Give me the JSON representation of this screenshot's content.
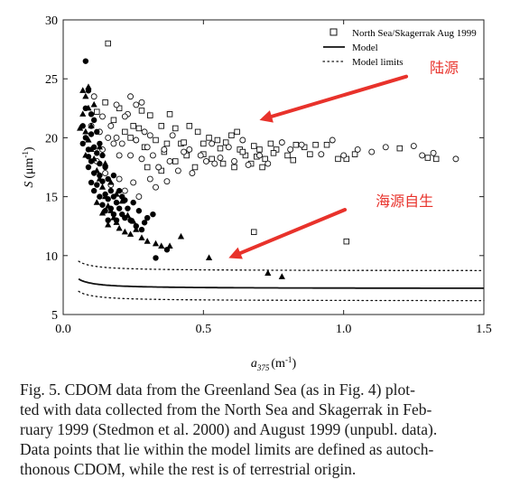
{
  "chart_data": {
    "type": "scatter",
    "title": "",
    "xlabel": "a",
    "xlabel_sub": "375",
    "xlabel_unit": "(m",
    "xlabel_unit_sup": "-1",
    "xlabel_unit_close": ")",
    "ylabel": "S",
    "ylabel_unit": "(μm",
    "ylabel_unit_sup": "-1",
    "ylabel_unit_close": ")",
    "xlim": [
      0.0,
      1.5
    ],
    "ylim": [
      5,
      30
    ],
    "x_ticks": [
      "0.0",
      "0.5",
      "1.0",
      "1.5"
    ],
    "y_ticks": [
      "5",
      "10",
      "15",
      "20",
      "25",
      "30"
    ],
    "grid": false,
    "legend_position": "top-right",
    "legend": [
      {
        "label": "North Sea/Skagerrak Aug 1999",
        "kind": "open-square"
      },
      {
        "label": "Model",
        "kind": "solid-line"
      },
      {
        "label": "Model limits",
        "kind": "dotted-line"
      }
    ],
    "model": {
      "a": 0.045,
      "n": 1.0,
      "c": 7.2,
      "upper_offset": 1.5,
      "lower_offset": -1.05,
      "x_start": 0.055
    },
    "annotations": [
      {
        "text": "陆源",
        "x": 1.41,
        "y": 25.5,
        "color": "#e8322b",
        "arrow_to": [
          0.7,
          21.5
        ]
      },
      {
        "text": "海源自生",
        "x": 1.32,
        "y": 14.2,
        "color": "#e8322b",
        "arrow_to": [
          0.59,
          9.8
        ]
      }
    ],
    "series": [
      {
        "kind": "open-square",
        "points": [
          [
            0.16,
            28
          ],
          [
            0.12,
            22.2
          ],
          [
            0.15,
            23
          ],
          [
            0.2,
            22.5
          ],
          [
            0.25,
            21
          ],
          [
            0.28,
            22.3
          ],
          [
            0.31,
            21.9
          ],
          [
            0.35,
            21
          ],
          [
            0.38,
            22
          ],
          [
            0.4,
            20.8
          ],
          [
            0.42,
            19.5
          ],
          [
            0.45,
            21
          ],
          [
            0.48,
            20.5
          ],
          [
            0.5,
            19.5
          ],
          [
            0.52,
            20
          ],
          [
            0.55,
            19.8
          ],
          [
            0.58,
            19.6
          ],
          [
            0.6,
            20.2
          ],
          [
            0.62,
            20.5
          ],
          [
            0.63,
            19
          ],
          [
            0.65,
            18.5
          ],
          [
            0.68,
            19.3
          ],
          [
            0.7,
            19
          ],
          [
            0.72,
            18.2
          ],
          [
            0.74,
            19.5
          ],
          [
            0.76,
            19
          ],
          [
            0.8,
            18.5
          ],
          [
            0.83,
            19.4
          ],
          [
            0.86,
            19.2
          ],
          [
            0.9,
            19.4
          ],
          [
            0.94,
            19.4
          ],
          [
            0.98,
            18.2
          ],
          [
            1.01,
            18.2
          ],
          [
            1.04,
            18.6
          ],
          [
            1.2,
            19.1
          ],
          [
            1.3,
            18.3
          ],
          [
            1.33,
            18.2
          ],
          [
            0.18,
            21.5
          ],
          [
            0.22,
            20.5
          ],
          [
            0.27,
            20.8
          ],
          [
            0.33,
            19.8
          ],
          [
            0.37,
            19.5
          ],
          [
            0.44,
            18.5
          ],
          [
            0.47,
            17.5
          ],
          [
            0.53,
            18.2
          ],
          [
            0.57,
            17.8
          ],
          [
            0.61,
            17.5
          ],
          [
            0.67,
            17.8
          ],
          [
            0.71,
            17.5
          ],
          [
            0.3,
            17.5
          ],
          [
            0.35,
            17.2
          ],
          [
            0.4,
            18
          ],
          [
            0.68,
            12
          ],
          [
            1.01,
            11.2
          ],
          [
            0.24,
            20
          ],
          [
            0.29,
            19.2
          ],
          [
            0.36,
            18.8
          ],
          [
            0.43,
            19.6
          ],
          [
            0.5,
            18.6
          ],
          [
            0.56,
            19.1
          ],
          [
            0.64,
            18.8
          ],
          [
            0.69,
            18.4
          ],
          [
            0.75,
            18.7
          ],
          [
            0.82,
            18.1
          ],
          [
            0.88,
            18.6
          ]
        ]
      },
      {
        "kind": "open-circle",
        "points": [
          [
            0.1,
            21
          ],
          [
            0.11,
            23.5
          ],
          [
            0.13,
            20.5
          ],
          [
            0.14,
            19
          ],
          [
            0.17,
            21
          ],
          [
            0.19,
            20
          ],
          [
            0.21,
            19.5
          ],
          [
            0.23,
            22
          ],
          [
            0.24,
            18.5
          ],
          [
            0.26,
            19.8
          ],
          [
            0.28,
            18.2
          ],
          [
            0.29,
            20.5
          ],
          [
            0.3,
            19.2
          ],
          [
            0.32,
            18.5
          ],
          [
            0.34,
            17.5
          ],
          [
            0.36,
            19
          ],
          [
            0.38,
            18
          ],
          [
            0.39,
            20.2
          ],
          [
            0.41,
            17.2
          ],
          [
            0.43,
            18.8
          ],
          [
            0.45,
            19
          ],
          [
            0.46,
            17
          ],
          [
            0.49,
            18.5
          ],
          [
            0.51,
            18
          ],
          [
            0.53,
            19.5
          ],
          [
            0.54,
            17.8
          ],
          [
            0.56,
            18.3
          ],
          [
            0.59,
            19.2
          ],
          [
            0.61,
            18
          ],
          [
            0.64,
            19.8
          ],
          [
            0.66,
            17.7
          ],
          [
            0.7,
            18.5
          ],
          [
            0.73,
            17.8
          ],
          [
            0.78,
            19.6
          ],
          [
            0.81,
            19
          ],
          [
            0.85,
            19.4
          ],
          [
            0.92,
            18.6
          ],
          [
            0.96,
            19.8
          ],
          [
            1.0,
            18.5
          ],
          [
            1.05,
            19
          ],
          [
            1.1,
            18.8
          ],
          [
            1.15,
            19.2
          ],
          [
            1.25,
            19.3
          ],
          [
            1.28,
            18.5
          ],
          [
            1.32,
            18.7
          ],
          [
            1.4,
            18.2
          ],
          [
            0.15,
            17
          ],
          [
            0.17,
            16
          ],
          [
            0.2,
            16.5
          ],
          [
            0.22,
            15.5
          ],
          [
            0.25,
            16.2
          ],
          [
            0.27,
            15
          ],
          [
            0.31,
            16.5
          ],
          [
            0.33,
            15.8
          ],
          [
            0.37,
            16.3
          ],
          [
            0.2,
            18.5
          ],
          [
            0.18,
            19.5
          ],
          [
            0.22,
            21.8
          ],
          [
            0.26,
            22.8
          ],
          [
            0.28,
            23
          ],
          [
            0.31,
            20.2
          ],
          [
            0.12,
            18
          ],
          [
            0.14,
            21.8
          ],
          [
            0.16,
            20
          ],
          [
            0.19,
            22.8
          ],
          [
            0.24,
            23.5
          ]
        ]
      },
      {
        "kind": "filled-circle",
        "points": [
          [
            0.08,
            26.5
          ],
          [
            0.09,
            24
          ],
          [
            0.1,
            22
          ],
          [
            0.11,
            21.5
          ],
          [
            0.12,
            20.5
          ],
          [
            0.13,
            19.5
          ],
          [
            0.14,
            18.5
          ],
          [
            0.15,
            17.5
          ],
          [
            0.16,
            16.5
          ],
          [
            0.17,
            15.5
          ],
          [
            0.18,
            15
          ],
          [
            0.19,
            14.5
          ],
          [
            0.2,
            14
          ],
          [
            0.21,
            13.5
          ],
          [
            0.22,
            13.2
          ],
          [
            0.24,
            13
          ],
          [
            0.26,
            12.5
          ],
          [
            0.28,
            12.2
          ],
          [
            0.3,
            13.2
          ],
          [
            0.32,
            13.5
          ],
          [
            0.08,
            20
          ],
          [
            0.09,
            19
          ],
          [
            0.1,
            18
          ],
          [
            0.11,
            17
          ],
          [
            0.12,
            16
          ],
          [
            0.13,
            15
          ],
          [
            0.14,
            14.3
          ],
          [
            0.15,
            13.8
          ],
          [
            0.16,
            13
          ],
          [
            0.17,
            14
          ],
          [
            0.18,
            13.5
          ],
          [
            0.07,
            19.5
          ],
          [
            0.07,
            21
          ],
          [
            0.09,
            17.5
          ],
          [
            0.1,
            16.2
          ],
          [
            0.11,
            15.5
          ],
          [
            0.13,
            16.8
          ],
          [
            0.15,
            15.2
          ],
          [
            0.2,
            15.5
          ],
          [
            0.23,
            14
          ],
          [
            0.25,
            14.5
          ],
          [
            0.27,
            13.8
          ],
          [
            0.29,
            12.8
          ],
          [
            0.33,
            9.8
          ],
          [
            0.37,
            10.5
          ],
          [
            0.08,
            22.5
          ],
          [
            0.1,
            20.3
          ],
          [
            0.12,
            18.7
          ],
          [
            0.14,
            16.3
          ],
          [
            0.16,
            14.8
          ],
          [
            0.18,
            16.8
          ],
          [
            0.21,
            15
          ],
          [
            0.22,
            14.7
          ],
          [
            0.19,
            13
          ],
          [
            0.09,
            18.4
          ],
          [
            0.11,
            19.2
          ],
          [
            0.13,
            17.8
          ]
        ]
      },
      {
        "kind": "filled-triangle",
        "points": [
          [
            0.07,
            24
          ],
          [
            0.08,
            23.5
          ],
          [
            0.09,
            22.5
          ],
          [
            0.1,
            21
          ],
          [
            0.07,
            22
          ],
          [
            0.08,
            20.5
          ],
          [
            0.09,
            19.8
          ],
          [
            0.1,
            19
          ],
          [
            0.11,
            18.2
          ],
          [
            0.12,
            17.2
          ],
          [
            0.13,
            16.5
          ],
          [
            0.14,
            15.8
          ],
          [
            0.15,
            15
          ],
          [
            0.16,
            14.2
          ],
          [
            0.17,
            13.8
          ],
          [
            0.18,
            13.2
          ],
          [
            0.19,
            12.8
          ],
          [
            0.2,
            12.3
          ],
          [
            0.22,
            12
          ],
          [
            0.24,
            11.8
          ],
          [
            0.26,
            12.2
          ],
          [
            0.28,
            11.5
          ],
          [
            0.3,
            11.2
          ],
          [
            0.33,
            11
          ],
          [
            0.35,
            10.8
          ],
          [
            0.38,
            10.8
          ],
          [
            0.42,
            11.6
          ],
          [
            0.52,
            9.8
          ],
          [
            0.73,
            8.5
          ],
          [
            0.78,
            8.2
          ],
          [
            0.09,
            24.3
          ],
          [
            0.11,
            22.8
          ],
          [
            0.13,
            19.2
          ],
          [
            0.15,
            17.8
          ],
          [
            0.17,
            16.2
          ],
          [
            0.19,
            15.2
          ],
          [
            0.21,
            14.6
          ],
          [
            0.23,
            13.4
          ],
          [
            0.25,
            12.9
          ],
          [
            0.12,
            14.5
          ],
          [
            0.14,
            13.6
          ],
          [
            0.16,
            12.6
          ],
          [
            0.06,
            20.8
          ],
          [
            0.08,
            18.5
          ]
        ]
      }
    ]
  },
  "caption": {
    "lines": [
      "Fig. 5.   CDOM data from the Greenland Sea (as in Fig. 4) plot-",
      "ted with data collected from the North Sea and Skagerrak in Feb-",
      "ruary 1999 (Stedmon et al. 2000) and August 1999 (unpubl. data).",
      "Data points that lie within the model limits are defined as autoch-",
      "thonous CDOM, while the rest is of terrestrial origin."
    ]
  }
}
